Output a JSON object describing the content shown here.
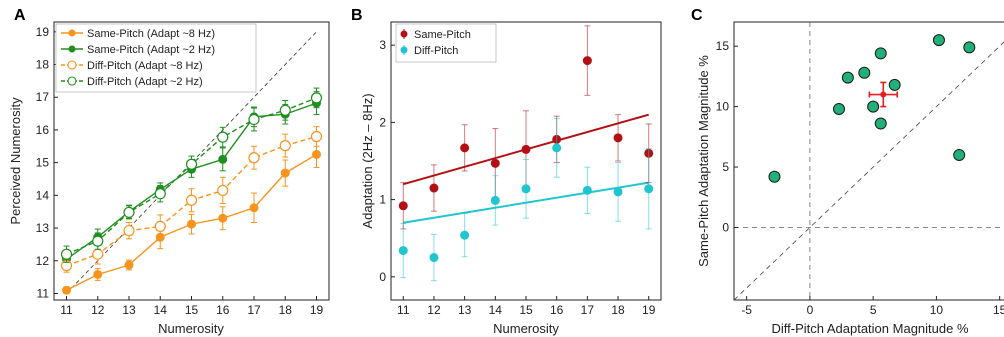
{
  "chart_data": [
    {
      "type": "line",
      "panel_label": "A",
      "xlabel": "Numerosity",
      "ylabel": "Perceived Numerosity",
      "x": [
        11,
        12,
        13,
        14,
        15,
        16,
        17,
        18,
        19
      ],
      "xlim": [
        10.6,
        19.4
      ],
      "ylim": [
        10.8,
        19.3
      ],
      "xticks": [
        11,
        12,
        13,
        14,
        15,
        16,
        17,
        18,
        19
      ],
      "yticks": [
        11,
        12,
        13,
        14,
        15,
        16,
        17,
        18,
        19
      ],
      "identity_line": true,
      "legend_position": "top-left",
      "series": [
        {
          "name": "Same-Pitch (Adapt ~8 Hz)",
          "color": "#f7941d",
          "marker": "filled",
          "dashed": false,
          "values": [
            11.1,
            11.58,
            11.87,
            12.72,
            13.12,
            13.3,
            13.62,
            14.68,
            15.25
          ],
          "errors": [
            0.1,
            0.18,
            0.15,
            0.35,
            0.3,
            0.35,
            0.45,
            0.4,
            0.4
          ]
        },
        {
          "name": "Same-Pitch (Adapt ~2 Hz)",
          "color": "#1f8f1f",
          "marker": "filled",
          "dashed": false,
          "values": [
            12.05,
            12.72,
            13.5,
            14.18,
            14.8,
            15.1,
            16.4,
            16.48,
            16.82
          ],
          "errors": [
            0.25,
            0.25,
            0.2,
            0.2,
            0.25,
            0.35,
            0.3,
            0.3,
            0.35
          ]
        },
        {
          "name": "Diff-Pitch (Adapt ~8 Hz)",
          "color": "#f7941d",
          "marker": "open",
          "dashed": true,
          "values": [
            11.85,
            12.2,
            12.92,
            13.05,
            13.85,
            14.15,
            15.15,
            15.52,
            15.8
          ],
          "errors": [
            0.2,
            0.3,
            0.25,
            0.35,
            0.35,
            0.4,
            0.35,
            0.35,
            0.3
          ]
        },
        {
          "name": "Diff-Pitch (Adapt ~2 Hz)",
          "color": "#1f8f1f",
          "marker": "open",
          "dashed": true,
          "values": [
            12.2,
            12.6,
            13.48,
            14.05,
            14.95,
            15.78,
            16.32,
            16.6,
            16.98
          ],
          "errors": [
            0.25,
            0.25,
            0.2,
            0.25,
            0.25,
            0.3,
            0.35,
            0.3,
            0.3
          ]
        }
      ]
    },
    {
      "type": "scatter",
      "panel_label": "B",
      "xlabel": "Numerosity",
      "ylabel": "Adaptation (2Hz – 8Hz)",
      "x": [
        11,
        12,
        13,
        14,
        15,
        16,
        17,
        18,
        19
      ],
      "xlim": [
        10.6,
        19.4
      ],
      "ylim": [
        -0.3,
        3.3
      ],
      "xticks": [
        11,
        12,
        13,
        14,
        15,
        16,
        17,
        18,
        19
      ],
      "yticks": [
        0,
        1,
        2,
        3
      ],
      "legend_position": "top-left",
      "series": [
        {
          "name": "Same-Pitch",
          "color": "#b30f14",
          "values": [
            0.92,
            1.15,
            1.67,
            1.47,
            1.65,
            1.78,
            2.8,
            1.8,
            1.6
          ],
          "errors": [
            0.3,
            0.3,
            0.3,
            0.45,
            0.5,
            0.3,
            0.45,
            0.3,
            0.38
          ],
          "fit": [
            1.2,
            2.1
          ]
        },
        {
          "name": "Diff-Pitch",
          "color": "#1fc6cf",
          "values": [
            0.34,
            0.25,
            0.54,
            0.99,
            1.14,
            1.67,
            1.12,
            1.1,
            1.14
          ],
          "errors": [
            0.35,
            0.3,
            0.28,
            0.32,
            0.38,
            0.38,
            0.3,
            0.38,
            0.52
          ],
          "fit": [
            0.7,
            1.22
          ]
        }
      ]
    },
    {
      "type": "scatter",
      "panel_label": "C",
      "xlabel": "Diff-Pitch Adaptation Magnitude %",
      "ylabel": "Same-Pitch Adaptation Magnitude %",
      "xlim": [
        -6,
        15.5
      ],
      "ylim": [
        -6,
        17
      ],
      "xticks": [
        -5,
        0,
        5,
        10,
        15
      ],
      "yticks": [
        0,
        5,
        10,
        15
      ],
      "identity_line": true,
      "zero_lines": true,
      "points": {
        "color": "#21b07a",
        "x": [
          -2.8,
          2.3,
          3.0,
          4.3,
          5.0,
          5.6,
          5.6,
          6.7,
          10.2,
          11.8,
          12.6
        ],
        "y": [
          4.2,
          9.8,
          12.4,
          12.8,
          10.0,
          14.4,
          8.6,
          11.8,
          15.5,
          6.0,
          14.9
        ]
      },
      "mean": {
        "color": "#e02020",
        "x": 5.8,
        "y": 11.0,
        "xerr": 1.1,
        "yerr": 1.0
      }
    }
  ]
}
